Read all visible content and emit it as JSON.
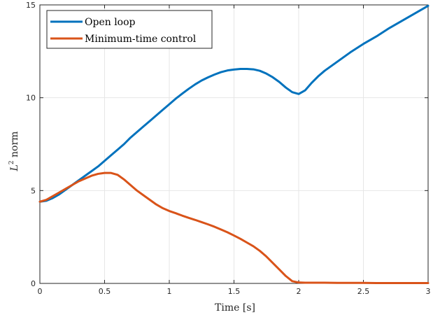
{
  "chart_data": {
    "type": "line",
    "title": "",
    "xlabel": "Time [s]",
    "ylabel_base": "L",
    "ylabel_sup": "2",
    "ylabel_rest": " norm",
    "xlim": [
      0,
      3
    ],
    "ylim": [
      0,
      15
    ],
    "xticks": [
      0,
      0.5,
      1,
      1.5,
      2,
      2.5,
      3
    ],
    "xtick_labels": [
      "0",
      "0.5",
      "1",
      "1.5",
      "2",
      "2.5",
      "3"
    ],
    "yticks": [
      0,
      5,
      10,
      15
    ],
    "ytick_labels": [
      "0",
      "5",
      "10",
      "15"
    ],
    "grid": true,
    "legend_position": "top-left",
    "series": [
      {
        "name": "Open loop",
        "color": "#0072BD",
        "x": [
          0,
          0.05,
          0.1,
          0.15,
          0.2,
          0.25,
          0.3,
          0.35,
          0.4,
          0.45,
          0.5,
          0.55,
          0.6,
          0.65,
          0.7,
          0.75,
          0.8,
          0.85,
          0.9,
          0.95,
          1.0,
          1.05,
          1.1,
          1.15,
          1.2,
          1.25,
          1.3,
          1.35,
          1.4,
          1.45,
          1.5,
          1.55,
          1.6,
          1.65,
          1.7,
          1.75,
          1.8,
          1.85,
          1.9,
          1.95,
          2.0,
          2.05,
          2.1,
          2.15,
          2.2,
          2.25,
          2.3,
          2.4,
          2.5,
          2.6,
          2.7,
          2.8,
          2.9,
          3.0
        ],
        "y": [
          4.4,
          4.45,
          4.6,
          4.8,
          5.05,
          5.3,
          5.55,
          5.8,
          6.05,
          6.3,
          6.6,
          6.9,
          7.2,
          7.5,
          7.85,
          8.15,
          8.45,
          8.75,
          9.05,
          9.35,
          9.65,
          9.95,
          10.22,
          10.48,
          10.72,
          10.93,
          11.1,
          11.25,
          11.38,
          11.47,
          11.52,
          11.55,
          11.55,
          11.53,
          11.45,
          11.3,
          11.1,
          10.85,
          10.55,
          10.3,
          10.2,
          10.4,
          10.8,
          11.15,
          11.45,
          11.7,
          11.95,
          12.45,
          12.9,
          13.3,
          13.75,
          14.15,
          14.55,
          14.95
        ]
      },
      {
        "name": "Minimum-time control",
        "color": "#D95319",
        "x": [
          0,
          0.05,
          0.1,
          0.15,
          0.2,
          0.25,
          0.3,
          0.35,
          0.4,
          0.45,
          0.5,
          0.55,
          0.6,
          0.65,
          0.7,
          0.75,
          0.8,
          0.85,
          0.9,
          0.95,
          1.0,
          1.05,
          1.1,
          1.15,
          1.2,
          1.25,
          1.3,
          1.35,
          1.4,
          1.45,
          1.5,
          1.55,
          1.6,
          1.65,
          1.7,
          1.75,
          1.8,
          1.85,
          1.9,
          1.95,
          2.0,
          2.05,
          2.1,
          2.2,
          2.3,
          2.4,
          2.5,
          2.6,
          2.7,
          2.8,
          2.9,
          3.0
        ],
        "y": [
          4.4,
          4.5,
          4.7,
          4.9,
          5.1,
          5.3,
          5.5,
          5.65,
          5.8,
          5.9,
          5.95,
          5.95,
          5.85,
          5.6,
          5.3,
          5.0,
          4.75,
          4.5,
          4.25,
          4.05,
          3.9,
          3.78,
          3.65,
          3.53,
          3.42,
          3.3,
          3.18,
          3.05,
          2.9,
          2.75,
          2.58,
          2.4,
          2.2,
          2.0,
          1.75,
          1.45,
          1.1,
          0.75,
          0.4,
          0.12,
          0.05,
          0.04,
          0.04,
          0.04,
          0.03,
          0.03,
          0.03,
          0.02,
          0.02,
          0.02,
          0.02,
          0.02
        ]
      }
    ]
  }
}
